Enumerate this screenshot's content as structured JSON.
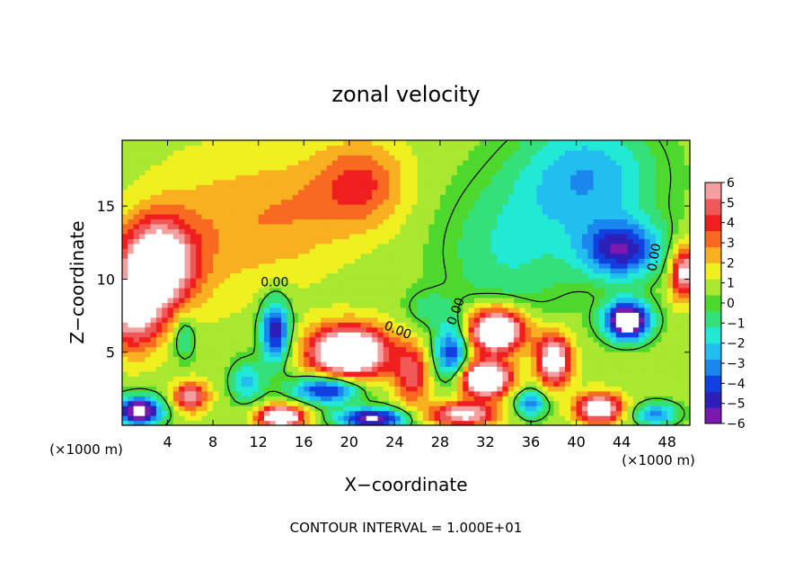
{
  "chart_data": {
    "type": "heatmap",
    "title": "zonal velocity",
    "xlabel": "X−coordinate",
    "ylabel": "Z−coordinate",
    "x_unit_left": "(×1000 m)",
    "x_unit_right": "(×1000 m)",
    "footer": "CONTOUR INTERVAL = 1.000E+01",
    "xlim": [
      0,
      50
    ],
    "ylim": [
      0,
      19.5
    ],
    "x_ticks": [
      4,
      8,
      12,
      16,
      20,
      24,
      28,
      32,
      36,
      40,
      44,
      48
    ],
    "y_ticks": [
      5,
      10,
      15
    ],
    "colorbar": {
      "range": [
        -6,
        6
      ],
      "ticks": [
        6,
        5,
        4,
        3,
        2,
        1,
        0,
        -1,
        -2,
        -3,
        -4,
        -5,
        -6
      ],
      "tick_labels": [
        "6",
        "5",
        "4",
        "3",
        "2",
        "1",
        "0",
        "−1",
        "−2",
        "−3",
        "−4",
        "−5",
        "−6"
      ]
    },
    "contour_labels": [
      "0.00",
      "0.00",
      "0.00",
      "0.00"
    ],
    "field_centers": [
      {
        "x": 3.0,
        "z": 11.0,
        "v": 8,
        "sx": 3.2,
        "sz": 3.0
      },
      {
        "x": 1.0,
        "z": 7.5,
        "v": 5,
        "sx": 2.5,
        "sz": 2.5
      },
      {
        "x": 21.0,
        "z": 16.5,
        "v": 3,
        "sx": 4.0,
        "sz": 3.0
      },
      {
        "x": 8.0,
        "z": 13.5,
        "v": 1.5,
        "sx": 6.0,
        "sz": 5.0
      },
      {
        "x": 15.0,
        "z": 14.5,
        "v": 1.5,
        "sx": 5.0,
        "sz": 4.0
      },
      {
        "x": 41.0,
        "z": 17.0,
        "v": -3.5,
        "sx": 6.0,
        "sz": 4.0
      },
      {
        "x": 44.0,
        "z": 12.0,
        "v": -5.5,
        "sx": 3.5,
        "sz": 2.0
      },
      {
        "x": 34.0,
        "z": 12.0,
        "v": -2.0,
        "sx": 6.0,
        "sz": 5.0
      },
      {
        "x": 13.5,
        "z": 6.5,
        "v": -6,
        "sx": 1.3,
        "sz": 2.2
      },
      {
        "x": 20.0,
        "z": 5.0,
        "v": 9,
        "sx": 3.5,
        "sz": 1.8
      },
      {
        "x": 18.0,
        "z": 2.5,
        "v": -6,
        "sx": 3.0,
        "sz": 1.0
      },
      {
        "x": 25.5,
        "z": 3.5,
        "v": 4,
        "sx": 1.5,
        "sz": 2.0
      },
      {
        "x": 29.0,
        "z": 5.0,
        "v": -5,
        "sx": 1.5,
        "sz": 2.0
      },
      {
        "x": 33.0,
        "z": 6.5,
        "v": 9,
        "sx": 2.5,
        "sz": 1.5
      },
      {
        "x": 32.0,
        "z": 3.2,
        "v": 9,
        "sx": 2.2,
        "sz": 1.2
      },
      {
        "x": 38.0,
        "z": 4.5,
        "v": 7,
        "sx": 1.5,
        "sz": 1.8
      },
      {
        "x": 44.5,
        "z": 7.2,
        "v": -9,
        "sx": 2.0,
        "sz": 1.3
      },
      {
        "x": 49.5,
        "z": 10.5,
        "v": 6,
        "sx": 1.2,
        "sz": 1.8
      },
      {
        "x": 6.0,
        "z": 2.0,
        "v": 5,
        "sx": 1.5,
        "sz": 1.0
      },
      {
        "x": 1.5,
        "z": 1.0,
        "v": -8,
        "sx": 2.0,
        "sz": 1.0
      },
      {
        "x": 14.0,
        "z": 0.6,
        "v": 8,
        "sx": 2.0,
        "sz": 0.8
      },
      {
        "x": 22.0,
        "z": 0.5,
        "v": -7,
        "sx": 3.0,
        "sz": 0.7
      },
      {
        "x": 30.0,
        "z": 0.8,
        "v": 6,
        "sx": 3.0,
        "sz": 0.8
      },
      {
        "x": 36.0,
        "z": 1.5,
        "v": -4,
        "sx": 1.5,
        "sz": 1.0
      },
      {
        "x": 42.0,
        "z": 1.2,
        "v": 7,
        "sx": 2.0,
        "sz": 1.0
      },
      {
        "x": 47.0,
        "z": 0.8,
        "v": -4,
        "sx": 2.0,
        "sz": 0.8
      },
      {
        "x": 11.0,
        "z": 3.0,
        "v": -3,
        "sx": 1.5,
        "sz": 1.5
      },
      {
        "x": 27.0,
        "z": 8.0,
        "v": -1.5,
        "sx": 2.0,
        "sz": 1.2
      },
      {
        "x": 5.5,
        "z": 6.0,
        "v": -2.5,
        "sx": 1.0,
        "sz": 1.5
      }
    ],
    "colors": {
      "over_max": "#ffffff",
      "under_min": "#ffffff",
      "palette": [
        "#7a18b0",
        "#2c20b8",
        "#1240e0",
        "#1a86ee",
        "#22bef0",
        "#22e8d6",
        "#34e07a",
        "#4ed82e",
        "#a8e830",
        "#f0f020",
        "#f8b020",
        "#f86a20",
        "#f01e1e",
        "#f05858",
        "#f4a0a0"
      ]
    }
  }
}
